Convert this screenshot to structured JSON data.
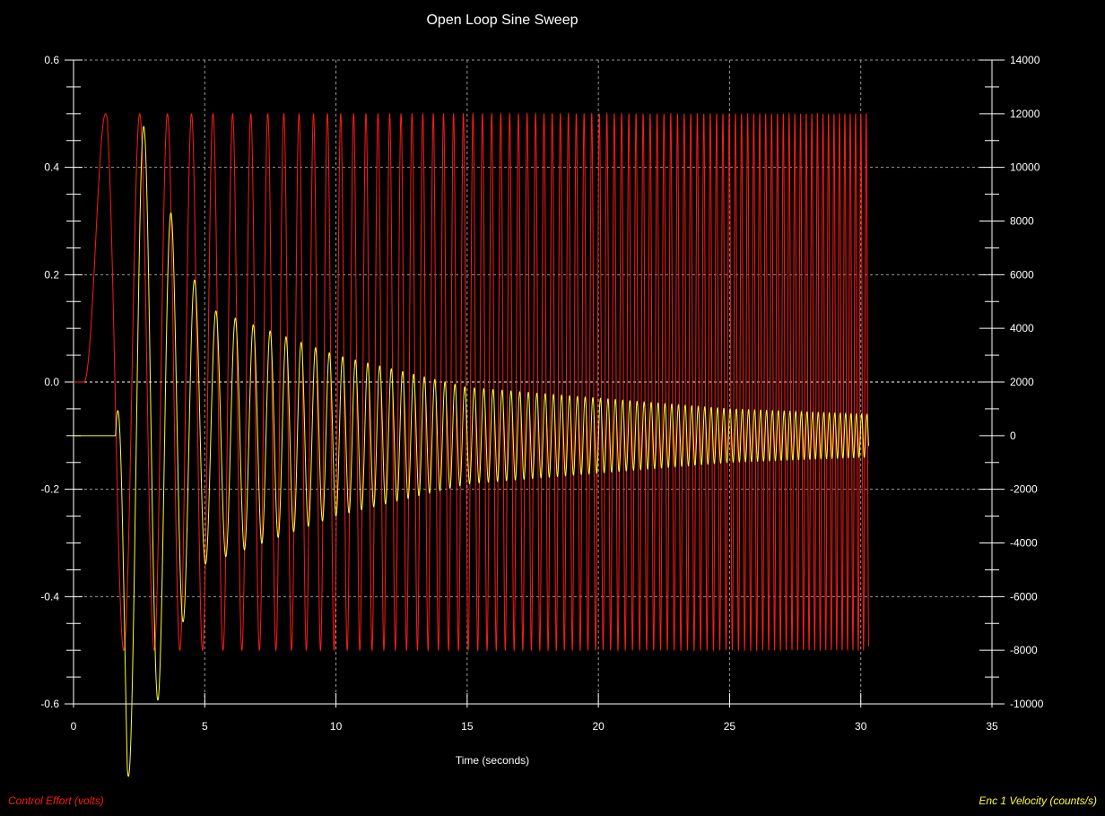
{
  "chart_data": {
    "type": "line",
    "title": "Open Loop Sine Sweep",
    "xlabel": "Time (seconds)",
    "xlim": [
      0,
      35
    ],
    "xticks": [
      "0",
      "5",
      "10",
      "15",
      "20",
      "25",
      "30",
      "35"
    ],
    "y_left": {
      "label": "Control Effort (volts)",
      "lim": [
        -0.6,
        0.6
      ],
      "ticks": [
        "0.6",
        "0.4",
        "0.2",
        "0.0",
        "-0.2",
        "-0.4",
        "-0.6"
      ]
    },
    "y_right": {
      "label": "Enc 1 Velocity (counts/s)",
      "lim": [
        -10000,
        14000
      ],
      "ticks": [
        "14000",
        "12000",
        "10000",
        "8000",
        "6000",
        "4000",
        "2000",
        "0",
        "-2000",
        "-4000",
        "-6000",
        "-8000",
        "-10000"
      ]
    },
    "grid": true,
    "legend_position": "bottom",
    "series": [
      {
        "name": "Control Effort (volts)",
        "axis": "left",
        "color": "#ff1a1a",
        "description": "Sine sweep of amplitude 0.5 V, zero before t~0.4 s, frequency increasing from ~0.55 Hz to ~5 Hz up to t~30.3 s",
        "amplitude": 0.5,
        "t_start": 0.4,
        "t_end": 30.3,
        "f_start": 0.55,
        "f_end": 5.0
      },
      {
        "name": "Enc 1 Velocity (counts/s)",
        "axis": "right",
        "color": "#ffff33",
        "description": "Velocity response: flat at 0 until t~1.6 s, large oscillation peaking ~12700 and ~-9900 near t~2-3 s, decaying envelope to about +/-800 around 0 by t~30 s",
        "key_points": [
          {
            "t": 0.0,
            "v": 0
          },
          {
            "t": 1.6,
            "v": 0
          },
          {
            "t": 2.3,
            "v": 12700
          },
          {
            "t": 2.9,
            "v": -9900
          },
          {
            "t": 3.3,
            "v": 9600
          },
          {
            "t": 3.75,
            "v": -6000
          },
          {
            "t": 4.0,
            "v": 7400
          },
          {
            "t": 4.5,
            "v": -6200
          },
          {
            "t": 5.0,
            "v": 4800
          },
          {
            "t": 10.0,
            "v": 3000
          },
          {
            "t": 15.0,
            "v": 1800
          },
          {
            "t": 20.0,
            "v": 1400
          },
          {
            "t": 25.0,
            "v": 1000
          },
          {
            "t": 30.3,
            "v": 800
          }
        ]
      }
    ]
  }
}
